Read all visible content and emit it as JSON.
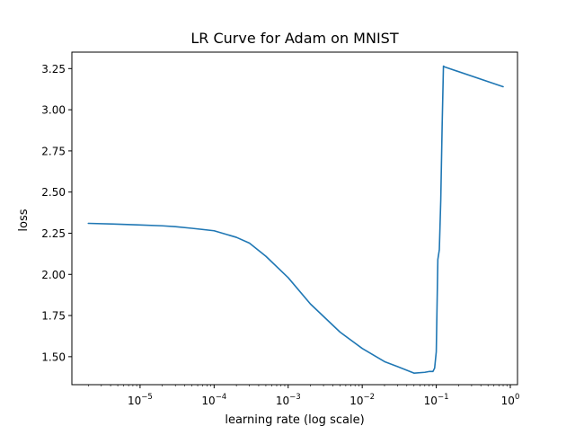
{
  "chart_data": {
    "type": "line",
    "title": "LR Curve for Adam on MNIST",
    "xlabel": "learning rate (log scale)",
    "ylabel": "loss",
    "x_scale": "log",
    "xlim": [
      1.2e-06,
      1.25
    ],
    "ylim": [
      1.33,
      3.35
    ],
    "grid": false,
    "legend": "none",
    "color": "#1f77b4",
    "x_ticks": [
      {
        "value": 1e-05,
        "base": "10",
        "exp": "−5"
      },
      {
        "value": 0.0001,
        "base": "10",
        "exp": "−4"
      },
      {
        "value": 0.001,
        "base": "10",
        "exp": "−3"
      },
      {
        "value": 0.01,
        "base": "10",
        "exp": "−2"
      },
      {
        "value": 0.1,
        "base": "10",
        "exp": "−1"
      },
      {
        "value": 1,
        "base": "10",
        "exp": "0"
      }
    ],
    "y_ticks": [
      {
        "value": 1.5,
        "label": "1.50"
      },
      {
        "value": 1.75,
        "label": "1.75"
      },
      {
        "value": 2.0,
        "label": "2.00"
      },
      {
        "value": 2.25,
        "label": "2.25"
      },
      {
        "value": 2.5,
        "label": "2.50"
      },
      {
        "value": 2.75,
        "label": "2.75"
      },
      {
        "value": 3.0,
        "label": "3.00"
      },
      {
        "value": 3.25,
        "label": "3.25"
      }
    ],
    "series": [
      {
        "x": [
          2e-06,
          5e-06,
          1e-05,
          2e-05,
          3e-05,
          5e-05,
          0.0001,
          0.0002,
          0.0003,
          0.0005,
          0.001,
          0.002,
          0.005,
          0.01,
          0.02,
          0.03,
          0.05,
          0.07,
          0.08,
          0.09,
          0.095,
          0.1,
          0.105,
          0.11,
          0.115,
          0.12,
          0.125,
          0.13,
          0.8
        ],
        "y": [
          2.31,
          2.305,
          2.3,
          2.295,
          2.29,
          2.28,
          2.265,
          2.225,
          2.19,
          2.11,
          1.98,
          1.82,
          1.65,
          1.55,
          1.47,
          1.44,
          1.4,
          1.405,
          1.41,
          1.41,
          1.43,
          1.53,
          2.09,
          2.15,
          2.45,
          2.9,
          3.265,
          3.26,
          3.14
        ]
      }
    ]
  }
}
